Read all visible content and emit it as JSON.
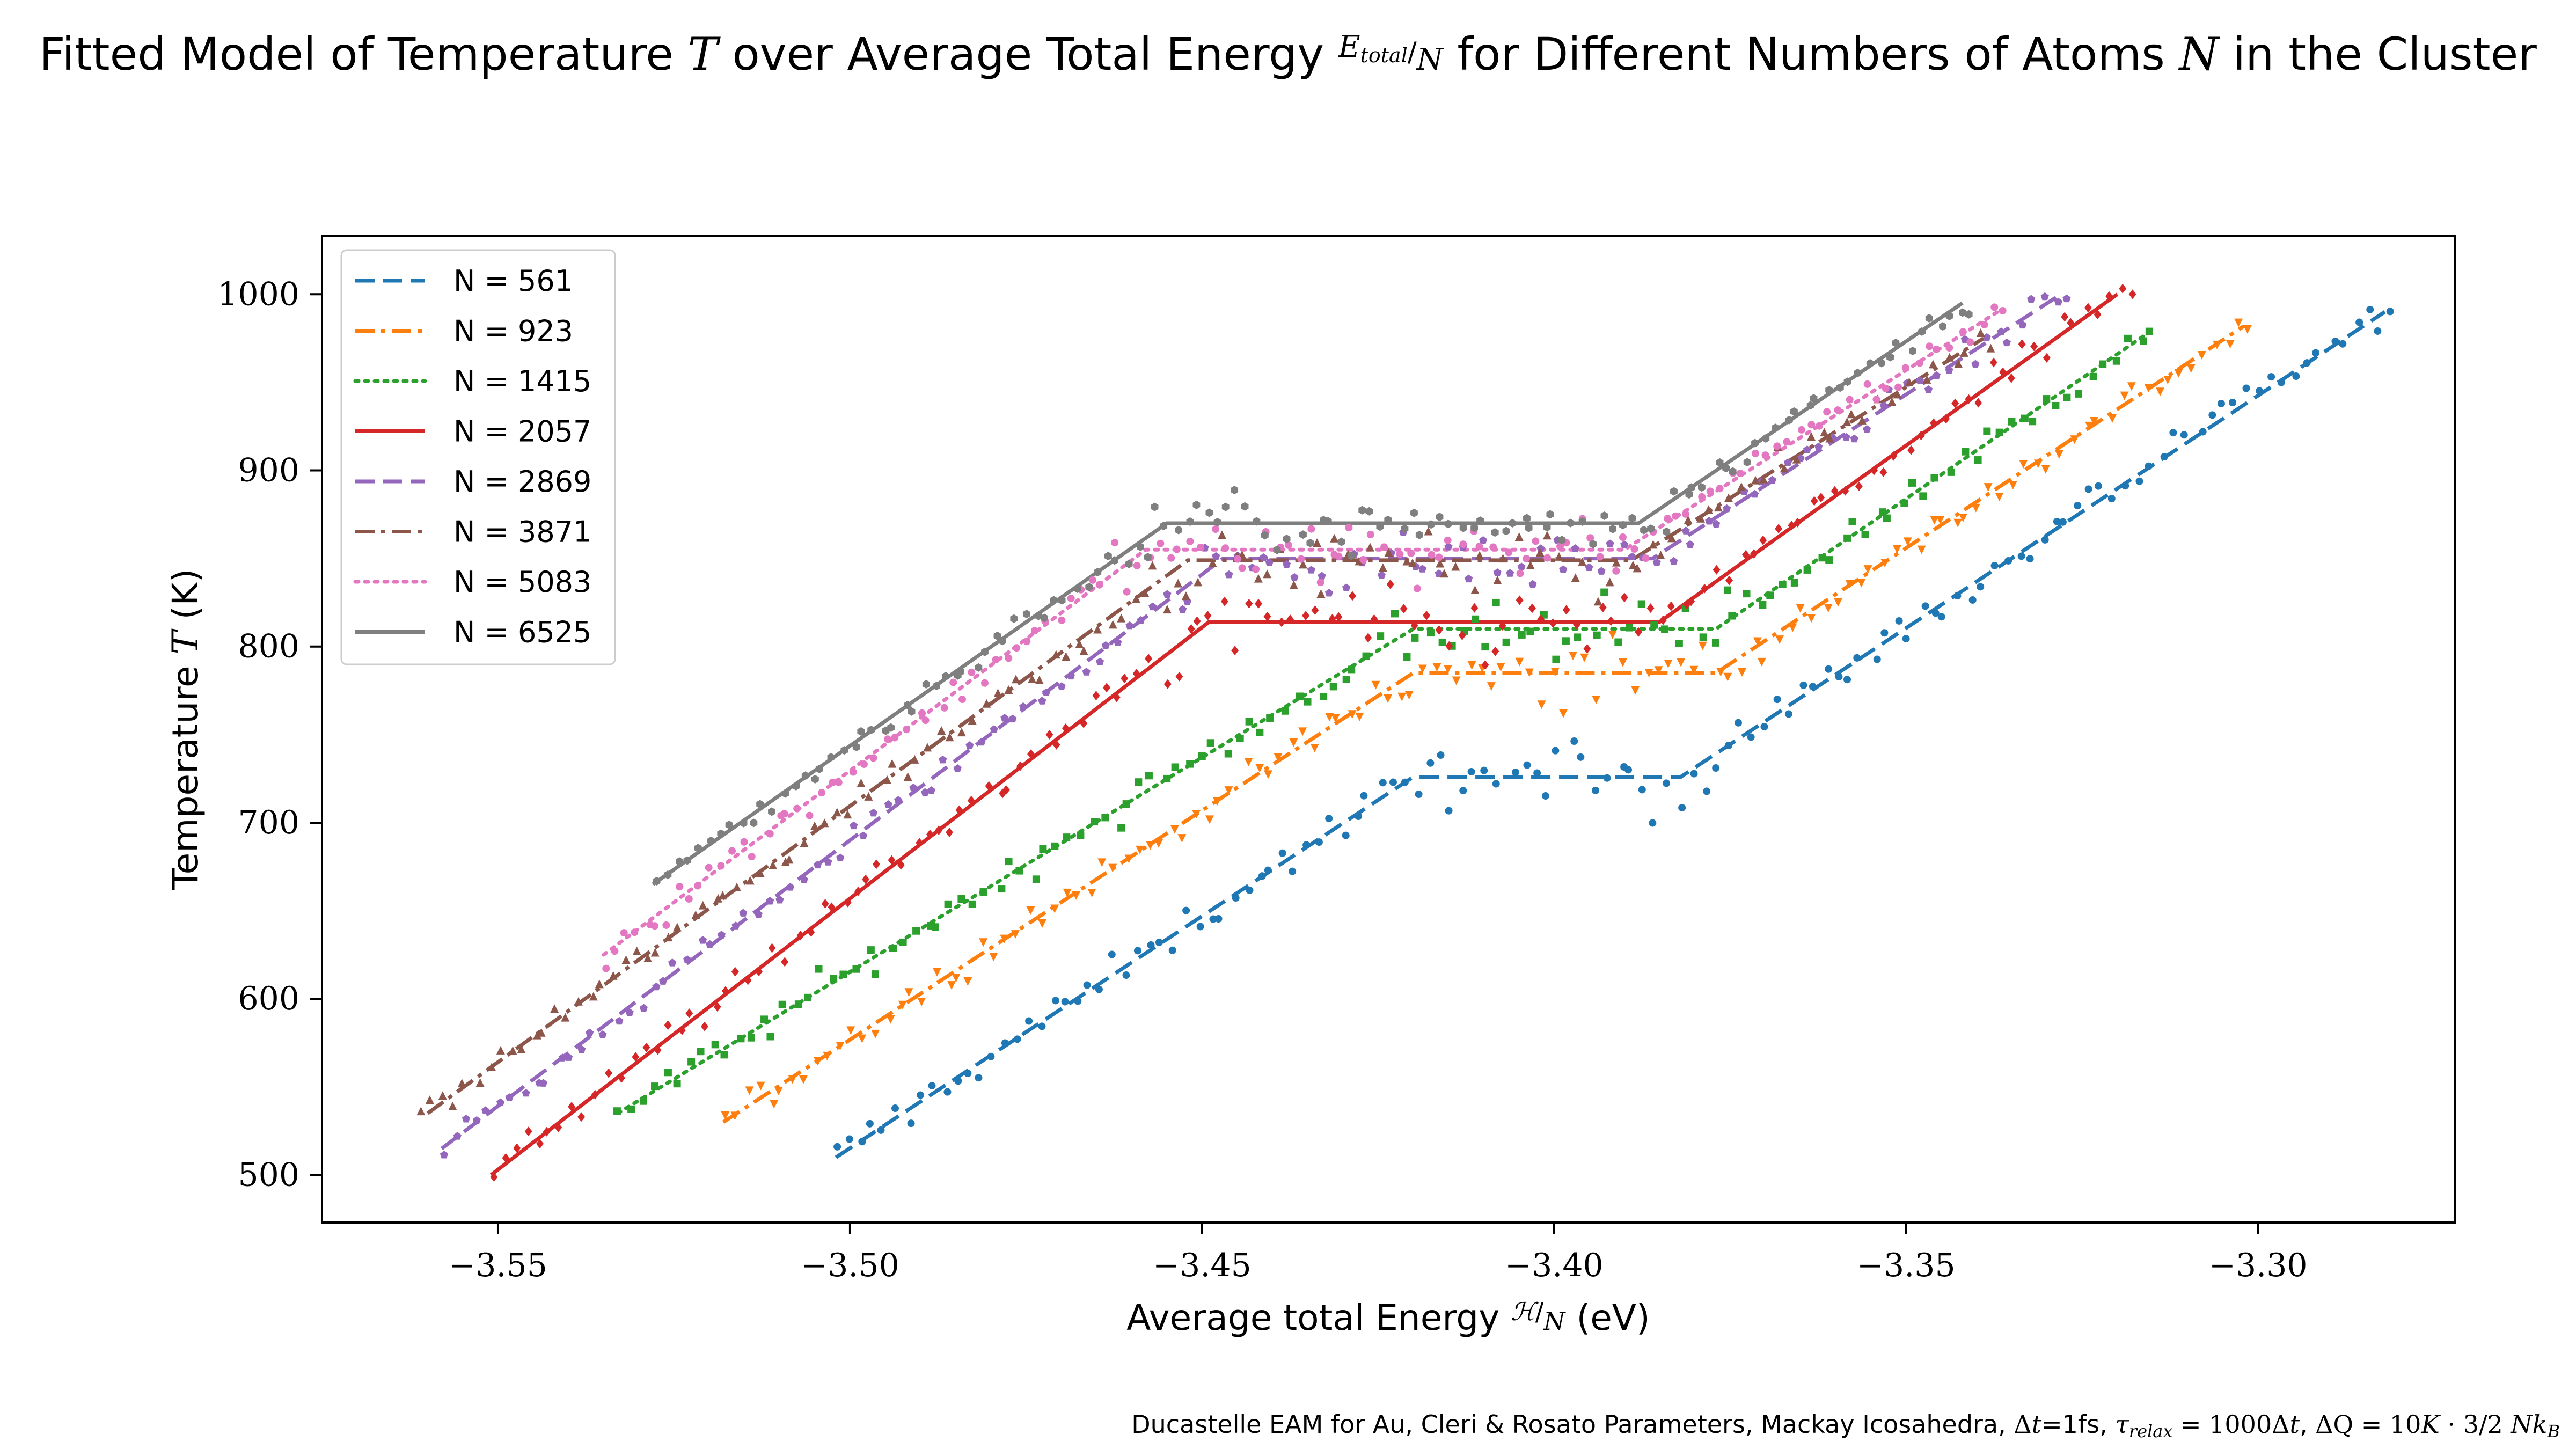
{
  "chart_data": {
    "type": "line",
    "title": "Fitted Model of Temperature T over Average Total Energy E_total/N for Different Numbers of Atoms N in the Cluster",
    "xlabel": "Average total Energy ℋ/N (eV)",
    "ylabel": "Temperature T (K)",
    "footnote": "Ducastelle EAM for Au, Cleri & Rosato Parameters, Mackay Icosahedra, Δt=1fs, τ_relax = 1000Δt, ΔQ = 10K · 3/2 N k_B",
    "xlim": [
      -3.575,
      -3.272
    ],
    "ylim": [
      473,
      1033
    ],
    "xticks": [
      -3.55,
      -3.5,
      -3.45,
      -3.4,
      -3.35,
      -3.3
    ],
    "xtick_labels": [
      "−3.55",
      "−3.50",
      "−3.45",
      "−3.40",
      "−3.35",
      "−3.30"
    ],
    "yticks": [
      500,
      600,
      700,
      800,
      900,
      1000
    ],
    "ytick_labels": [
      "500",
      "600",
      "700",
      "800",
      "900",
      "1000"
    ],
    "grid": false,
    "legend_position": "top-left",
    "series": [
      {
        "name": "N = 561",
        "color": "#1f77b4",
        "dash": "dashed",
        "marker": "circle",
        "fit": [
          [
            -3.502,
            510
          ],
          [
            -3.42,
            726
          ],
          [
            -3.382,
            726
          ],
          [
            -3.282,
            990
          ]
        ],
        "scatter": {
          "x_start": -3.502,
          "x_end": -3.281,
          "n": 130,
          "noise": 10
        }
      },
      {
        "name": "N = 923",
        "color": "#ff7f0e",
        "dash": "dashdot",
        "marker": "triangle-down",
        "fit": [
          [
            -3.518,
            530
          ],
          [
            -3.42,
            785
          ],
          [
            -3.377,
            785
          ],
          [
            -3.302,
            982
          ]
        ],
        "scatter": {
          "x_start": -3.518,
          "x_end": -3.301,
          "n": 130,
          "noise": 9
        }
      },
      {
        "name": "N = 1415",
        "color": "#2ca02c",
        "dash": "dotted",
        "marker": "square",
        "fit": [
          [
            -3.533,
            535
          ],
          [
            -3.42,
            810
          ],
          [
            -3.377,
            810
          ],
          [
            -3.316,
            977
          ]
        ],
        "scatter": {
          "x_start": -3.533,
          "x_end": -3.315,
          "n": 130,
          "noise": 9
        }
      },
      {
        "name": "N = 2057",
        "color": "#d62728",
        "dash": "solid",
        "marker": "diamond",
        "fit": [
          [
            -3.551,
            500
          ],
          [
            -3.449,
            814
          ],
          [
            -3.385,
            814
          ],
          [
            -3.32,
            1000
          ]
        ],
        "scatter": {
          "x_start": -3.551,
          "x_end": -3.318,
          "n": 140,
          "noise": 9
        }
      },
      {
        "name": "N = 2869",
        "color": "#9467bd",
        "dash": "dashed",
        "marker": "pentagon",
        "fit": [
          [
            -3.558,
            515
          ],
          [
            -3.447,
            850
          ],
          [
            -3.386,
            850
          ],
          [
            -3.328,
            1000
          ]
        ],
        "scatter": {
          "x_start": -3.558,
          "x_end": -3.327,
          "n": 140,
          "noise": 8
        }
      },
      {
        "name": "N = 3871",
        "color": "#8c564b",
        "dash": "dashdot",
        "marker": "triangle-up",
        "fit": [
          [
            -3.56,
            535
          ],
          [
            -3.452,
            849
          ],
          [
            -3.389,
            849
          ],
          [
            -3.339,
            975
          ]
        ],
        "scatter": {
          "x_start": -3.561,
          "x_end": -3.338,
          "n": 140,
          "noise": 8
        }
      },
      {
        "name": "N = 5083",
        "color": "#e377c2",
        "dash": "dotted",
        "marker": "circle",
        "fit": [
          [
            -3.535,
            625
          ],
          [
            -3.458,
            855
          ],
          [
            -3.39,
            855
          ],
          [
            -3.337,
            990
          ]
        ],
        "scatter": {
          "x_start": -3.535,
          "x_end": -3.336,
          "n": 130,
          "noise": 8
        }
      },
      {
        "name": "N = 6525",
        "color": "#7f7f7f",
        "dash": "solid",
        "marker": "hexagon",
        "fit": [
          [
            -3.528,
            665
          ],
          [
            -3.455,
            870
          ],
          [
            -3.388,
            870
          ],
          [
            -3.342,
            995
          ]
        ],
        "scatter": {
          "x_start": -3.527,
          "x_end": -3.341,
          "n": 130,
          "noise": 7
        }
      }
    ]
  }
}
